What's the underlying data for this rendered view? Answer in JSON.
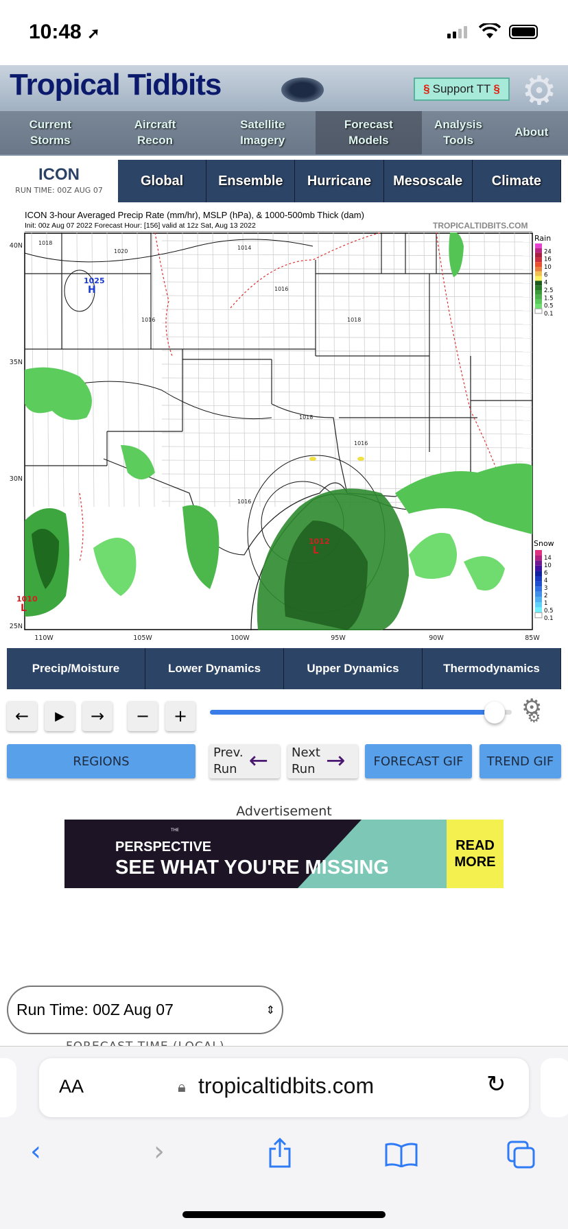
{
  "status_bar": {
    "time": "10:48",
    "location_icon": "location-arrow-icon",
    "signal_icon": "signal-icon",
    "wifi_icon": "wifi-icon",
    "battery_icon": "battery-icon"
  },
  "header": {
    "logo": "Tropical Tidbits",
    "support_label": "Support TT",
    "nav": [
      "Current Storms",
      "Aircraft Recon",
      "Satellite Imagery",
      "Forecast Models",
      "Analysis Tools",
      "About"
    ],
    "active_nav": "Forecast Models"
  },
  "model": {
    "name": "ICON",
    "run_time": "RUN TIME: 00Z AUG 07",
    "tabs": [
      "Global",
      "Ensemble",
      "Hurricane",
      "Mesoscale",
      "Climate"
    ]
  },
  "map": {
    "title": "ICON 3-hour Averaged Precip Rate (mm/hr), MSLP (hPa), & 1000-500mb Thick (dam)",
    "subtitle": "Init: 00z Aug 07 2022   Forecast Hour: [156]   valid at 12z Sat, Aug 13 2022",
    "brand": "TROPICALTIDBITS.COM",
    "lat_labels": [
      "40N",
      "35N",
      "30N",
      "25N"
    ],
    "lon_labels": [
      "110W",
      "105W",
      "100W",
      "95W",
      "90W",
      "85W"
    ],
    "pressure_labels": [
      {
        "value": "1025",
        "center": "H"
      },
      {
        "value": "1012",
        "center": "L"
      },
      {
        "value": "1010",
        "center": "L"
      }
    ],
    "isobar_labels": [
      "1018",
      "1020",
      "1016",
      "1014",
      "1016",
      "1018",
      "1016",
      "1016",
      "1018"
    ],
    "rain_legend": {
      "title": "Rain",
      "ticks": [
        "24",
        "16",
        "10",
        "6",
        "4",
        "2.5",
        "1.5",
        "0.5",
        "0.1"
      ],
      "colors": [
        "#e840d0",
        "#b82880",
        "#a82040",
        "#c83040",
        "#e85030",
        "#e88040",
        "#f0c050",
        "#f8f060",
        "#1e5a1e",
        "#2a7a2a",
        "#3a9a3a",
        "#4cb04c",
        "#5cc85c",
        "#70e070"
      ]
    },
    "snow_legend": {
      "title": "Snow",
      "ticks": [
        "14",
        "10",
        "6",
        "4",
        "3",
        "2",
        "1",
        "0.5",
        "0.1"
      ],
      "colors": [
        "#e03080",
        "#b02080",
        "#701890",
        "#4010a0",
        "#1020a0",
        "#1838c0",
        "#2050d0",
        "#3070e0",
        "#4090e8",
        "#50b0f0",
        "#60d0f8",
        "#70f0ff"
      ]
    }
  },
  "categories": [
    "Precip/Moisture",
    "Lower Dynamics",
    "Upper Dynamics",
    "Thermodynamics"
  ],
  "controls": {
    "prev": "←",
    "play": "▶",
    "next": "→",
    "minus": "−",
    "plus": "+",
    "slider_value_fraction": 0.97
  },
  "buttons": {
    "regions": "REGIONS",
    "prev_run": [
      "Prev.",
      "Run"
    ],
    "next_run": [
      "Next",
      "Run"
    ],
    "forecast_gif": "FORECAST GIF",
    "trend_gif": "TREND GIF"
  },
  "ad": {
    "label": "Advertisement",
    "brand_small": "THE",
    "brand": "PERSPECTIVE",
    "headline": "SEE WHAT YOU'RE MISSING",
    "cta": "READ MORE"
  },
  "run_select": {
    "value": "Run Time: 00Z Aug 07"
  },
  "forecast_time_label": "FORECAST TIME (LOCAL)",
  "browser": {
    "aa": "AA",
    "url": "tropicaltidbits.com"
  }
}
